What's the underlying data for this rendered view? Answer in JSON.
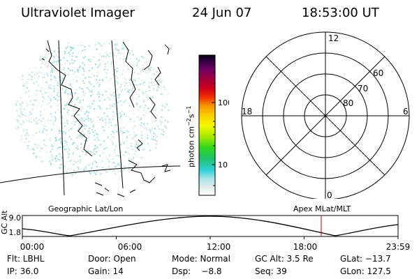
{
  "header": {
    "instrument": "Ultraviolet Imager",
    "date": "24 Jun 07",
    "time": "18:53:00 UT"
  },
  "colorbar": {
    "unit_base": "photon cm",
    "unit_exp1": "−2",
    "unit_mid": "s",
    "unit_exp2": "−1",
    "ticks": [
      "100",
      "10"
    ]
  },
  "polar_plot": {
    "mlt_labels": {
      "top": "12",
      "left": "18",
      "right": "6",
      "bottom": "0"
    },
    "lat_labels": [
      "60",
      "70",
      "80"
    ]
  },
  "timeline": {
    "left_label": "Geographic Lat/Lon",
    "right_label": "Apex MLat/MLT",
    "axis_title": "GC Alt",
    "y_ticks": [
      "9.0",
      "1.8"
    ],
    "x_ticks": [
      "00:00",
      "06:00",
      "12:00",
      "18:00",
      "23:59"
    ],
    "marker_color": "#cc0000"
  },
  "status": {
    "filter": "Flt: LBHL",
    "ip": "IP: 36.0",
    "door": "Door: Open",
    "gain": "Gain: 14",
    "mode": "Mode: Normal",
    "dsp": "Dsp:    −8.8",
    "gc_alt": "GC Alt: 3.5 Re",
    "seq": "Seq: 39",
    "glat": "GLat: −13.7",
    "glon": "GLon: 127.5"
  }
}
